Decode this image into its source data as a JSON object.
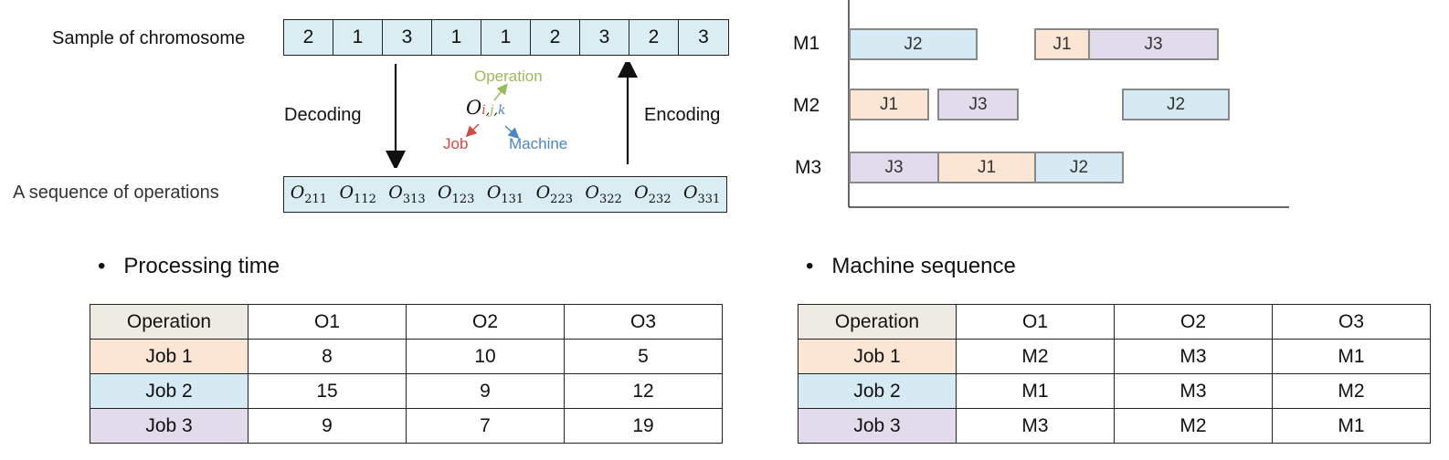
{
  "chromosome": {
    "label": "Sample of chromosome",
    "genes": [
      "2",
      "1",
      "3",
      "1",
      "1",
      "2",
      "3",
      "2",
      "3"
    ]
  },
  "operations": {
    "label": "A sequence of operations",
    "items": [
      {
        "base": "O",
        "sub": "211"
      },
      {
        "base": "O",
        "sub": "112"
      },
      {
        "base": "O",
        "sub": "313"
      },
      {
        "base": "O",
        "sub": "123"
      },
      {
        "base": "O",
        "sub": "131"
      },
      {
        "base": "O",
        "sub": "223"
      },
      {
        "base": "O",
        "sub": "322"
      },
      {
        "base": "O",
        "sub": "232"
      },
      {
        "base": "O",
        "sub": "331"
      }
    ]
  },
  "decoding_label": "Decoding",
  "encoding_label": "Encoding",
  "legend": {
    "symbol": "O",
    "i": "i",
    "j": "j",
    "k": "k",
    "operation": "Operation",
    "job": "Job",
    "machine": "Machine",
    "colors": {
      "job": "#d14a45",
      "operation": "#9bbb59",
      "machine": "#4a86c6"
    }
  },
  "gantt": {
    "machines": [
      {
        "name": "M1",
        "jobs": [
          {
            "label": "J2",
            "job": 2
          },
          {
            "label": "J1",
            "job": 1
          },
          {
            "label": "J3",
            "job": 3
          }
        ]
      },
      {
        "name": "M2",
        "jobs": [
          {
            "label": "J1",
            "job": 1
          },
          {
            "label": "J3",
            "job": 3
          },
          {
            "label": "J2",
            "job": 2
          }
        ]
      },
      {
        "name": "M3",
        "jobs": [
          {
            "label": "J3",
            "job": 3
          },
          {
            "label": "J1",
            "job": 1
          },
          {
            "label": "J2",
            "job": 2
          }
        ]
      }
    ]
  },
  "processing_time": {
    "title": "Processing time",
    "headers": [
      "Operation",
      "O1",
      "O2",
      "O3"
    ],
    "rows": [
      [
        "Job 1",
        "8",
        "10",
        "5"
      ],
      [
        "Job 2",
        "15",
        "9",
        "12"
      ],
      [
        "Job 3",
        "9",
        "7",
        "19"
      ]
    ]
  },
  "machine_sequence": {
    "title": "Machine sequence",
    "headers": [
      "Operation",
      "O1",
      "O2",
      "O3"
    ],
    "rows": [
      [
        "Job 1",
        "M2",
        "M3",
        "M1"
      ],
      [
        "Job 2",
        "M1",
        "M3",
        "M2"
      ],
      [
        "Job 3",
        "M3",
        "M2",
        "M1"
      ]
    ]
  },
  "colors": {
    "job1": "#fbe5d5",
    "job2": "#d5eaf2",
    "job3": "#e1dbeb",
    "header": "#eeece2",
    "cell": "#daedf3"
  }
}
